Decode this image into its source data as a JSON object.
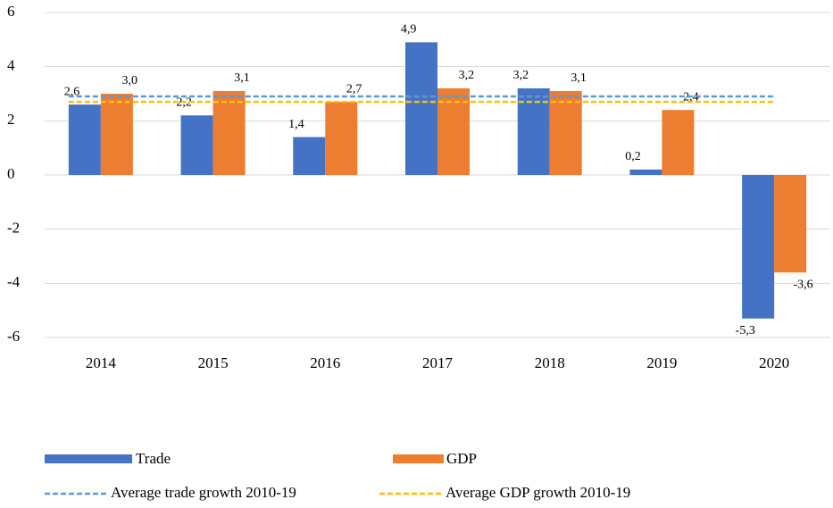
{
  "chart_data": {
    "type": "bar",
    "categories": [
      "2014",
      "2015",
      "2016",
      "2017",
      "2018",
      "2019",
      "2020"
    ],
    "series": [
      {
        "name": "Trade",
        "color": "#4472c4",
        "values": [
          2.6,
          2.2,
          1.4,
          4.9,
          3.2,
          0.2,
          -5.3
        ],
        "value_labels": [
          "2,6",
          "2,2",
          "1,4",
          "4,9",
          "3,2",
          "0,2",
          "-5,3"
        ]
      },
      {
        "name": "GDP",
        "color": "#ed7d31",
        "values": [
          3.0,
          3.1,
          2.7,
          3.2,
          3.1,
          2.4,
          -3.6
        ],
        "value_labels": [
          "3,0",
          "3,1",
          "2,7",
          "3,2",
          "3,1",
          "2,4",
          "-3,6"
        ]
      }
    ],
    "lines": [
      {
        "name": "Average trade growth 2010-19",
        "color": "#5b9bd5",
        "value": 2.9
      },
      {
        "name": "Average GDP growth 2010-19",
        "color": "#ffc000",
        "value": 2.7
      }
    ],
    "ylim": [
      -6,
      6
    ],
    "yticks": [
      -6,
      -4,
      -2,
      0,
      2,
      4,
      6
    ],
    "grid": true
  }
}
